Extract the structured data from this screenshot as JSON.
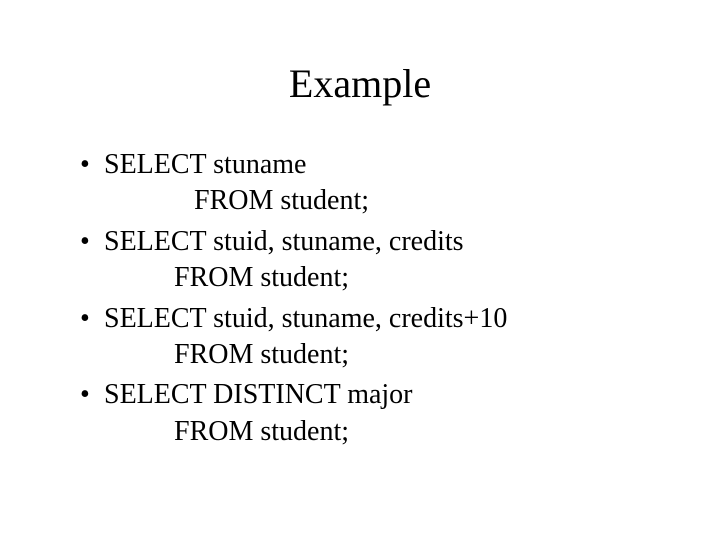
{
  "title": "Example",
  "bullets": [
    {
      "line1": "SELECT stuname",
      "line2": "FROM  student;",
      "indent_style": "indented-line"
    },
    {
      "line1": "SELECT  stuid, stuname, credits",
      "line2": "FROM  student;",
      "indent_style": "indented-line-short"
    },
    {
      "line1": "SELECT  stuid, stuname, credits+10",
      "line2": "FROM  student;",
      "indent_style": "indented-line-short"
    },
    {
      "line1": "SELECT  DISTINCT major",
      "line2": "FROM  student;",
      "indent_style": "indented-line-short"
    }
  ],
  "colors": {
    "background": "#ffffff",
    "text": "#000000"
  },
  "typography": {
    "title_fontsize": 40,
    "body_fontsize": 28,
    "font_family": "Times New Roman"
  }
}
